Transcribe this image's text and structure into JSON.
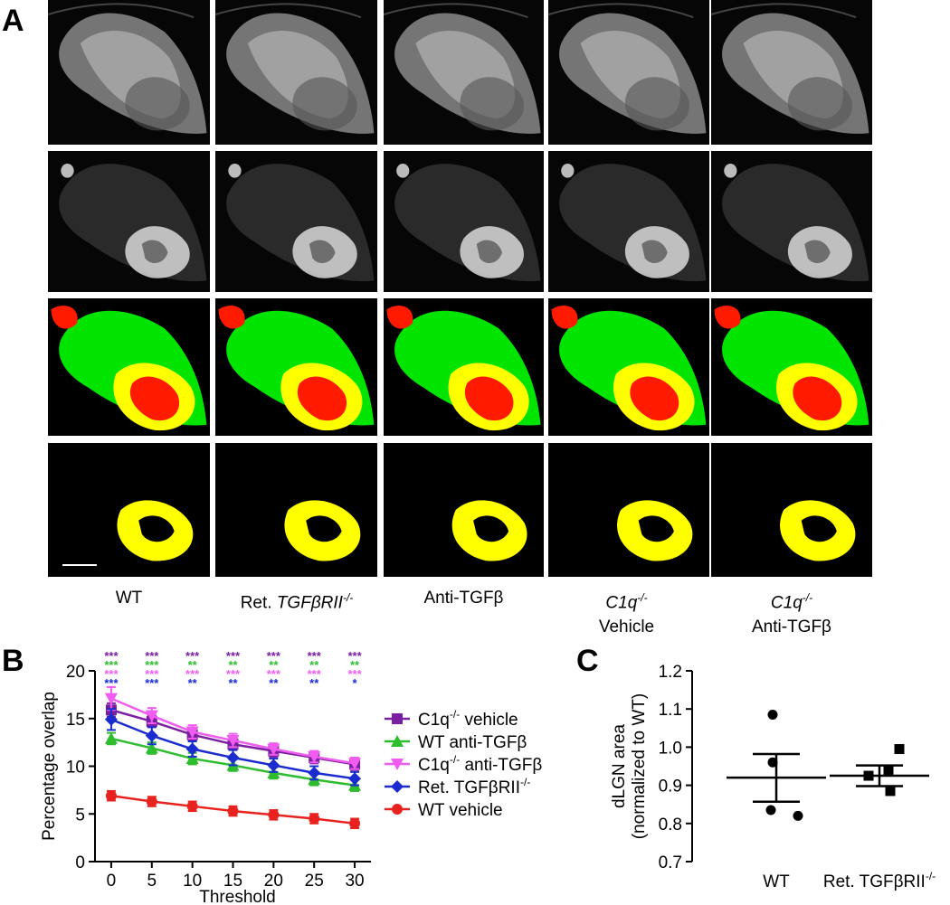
{
  "panel_labels": {
    "a": "A",
    "b": "B",
    "c": "C"
  },
  "panel_a": {
    "row_types": [
      "grayscale-ipsilateral",
      "grayscale-contralateral",
      "overlay-red-green-yellow",
      "overlap-yellow"
    ],
    "colors": {
      "green": "#00e400",
      "red": "#ff1a00",
      "yellow": "#ffff00",
      "background": "#000000"
    },
    "scale_bar": "scale-bar",
    "columns": [
      {
        "line1": "WT",
        "line2": ""
      },
      {
        "line1": "Ret. ",
        "line1_italic": "TGFβRII",
        "line1_sup": "-/-",
        "line2": ""
      },
      {
        "line1": "Anti-TGFβ",
        "line2": ""
      },
      {
        "line1": "",
        "line1_italic": "C1q",
        "line1_sup": "-/-",
        "line2": "Vehicle"
      },
      {
        "line1": "",
        "line1_italic": "C1q",
        "line1_sup": "-/-",
        "line2": "Anti-TGFβ"
      }
    ]
  },
  "chart_data": [
    {
      "panel": "B",
      "type": "line",
      "xlabel": "Threshold",
      "ylabel": "Percentage overlap",
      "x": [
        0,
        5,
        10,
        15,
        20,
        25,
        30
      ],
      "xlim": [
        -2,
        32
      ],
      "ylim": [
        0,
        20
      ],
      "yticks": [
        0,
        5,
        10,
        15,
        20
      ],
      "legend_position": "right",
      "series": [
        {
          "name_base": "C1q",
          "name_sup": "-/-",
          "name_suffix": " vehicle",
          "color": "#7b1fa2",
          "marker": "square",
          "values": [
            15.9,
            14.7,
            13.3,
            12.3,
            11.6,
            10.9,
            10.2
          ],
          "errors": [
            0.7,
            0.6,
            0.6,
            0.6,
            0.6,
            0.6,
            0.6
          ]
        },
        {
          "name_base": "WT anti-TGFβ",
          "name_sup": "",
          "name_suffix": "",
          "color": "#2ebd2e",
          "marker": "triangle-up",
          "values": [
            12.9,
            11.9,
            10.8,
            10.1,
            9.3,
            8.6,
            8.0
          ],
          "errors": [
            0.6,
            0.6,
            0.6,
            0.6,
            0.6,
            0.6,
            0.6
          ]
        },
        {
          "name_base": "C1q",
          "name_sup": "-/-",
          "name_suffix": " anti-TGFβ",
          "color": "#f05cf0",
          "marker": "triangle-down",
          "values": [
            17.1,
            15.3,
            13.6,
            12.7,
            11.8,
            11.0,
            10.3
          ],
          "errors": [
            1.2,
            0.8,
            0.7,
            0.7,
            0.6,
            0.6,
            0.6
          ]
        },
        {
          "name_base": "Ret. TGFβRII",
          "name_sup": "-/-",
          "name_suffix": "",
          "color": "#1a2bd0",
          "marker": "diamond",
          "values": [
            14.9,
            13.2,
            11.8,
            10.9,
            10.1,
            9.3,
            8.7
          ],
          "errors": [
            1.1,
            0.9,
            0.8,
            0.8,
            0.7,
            0.7,
            0.7
          ]
        },
        {
          "name_base": "WT vehicle",
          "name_sup": "",
          "name_suffix": "",
          "color": "#e8231f",
          "marker": "circle",
          "values": [
            6.9,
            6.3,
            5.8,
            5.3,
            4.9,
            4.5,
            4.0
          ],
          "errors": [
            0.5,
            0.5,
            0.5,
            0.5,
            0.5,
            0.5,
            0.5
          ]
        }
      ],
      "significance": [
        {
          "x": 0,
          "marks": [
            [
              "***",
              "#7b1fa2"
            ],
            [
              "***",
              "#2ebd2e"
            ],
            [
              "***",
              "#f05cf0"
            ],
            [
              "***",
              "#1a2bd0"
            ]
          ]
        },
        {
          "x": 5,
          "marks": [
            [
              "***",
              "#7b1fa2"
            ],
            [
              "***",
              "#2ebd2e"
            ],
            [
              "***",
              "#f05cf0"
            ],
            [
              "***",
              "#1a2bd0"
            ]
          ]
        },
        {
          "x": 10,
          "marks": [
            [
              "***",
              "#7b1fa2"
            ],
            [
              "**",
              "#2ebd2e"
            ],
            [
              "***",
              "#f05cf0"
            ],
            [
              "**",
              "#1a2bd0"
            ]
          ]
        },
        {
          "x": 15,
          "marks": [
            [
              "***",
              "#7b1fa2"
            ],
            [
              "**",
              "#2ebd2e"
            ],
            [
              "***",
              "#f05cf0"
            ],
            [
              "**",
              "#1a2bd0"
            ]
          ]
        },
        {
          "x": 20,
          "marks": [
            [
              "***",
              "#7b1fa2"
            ],
            [
              "**",
              "#2ebd2e"
            ],
            [
              "***",
              "#f05cf0"
            ],
            [
              "**",
              "#1a2bd0"
            ]
          ]
        },
        {
          "x": 25,
          "marks": [
            [
              "***",
              "#7b1fa2"
            ],
            [
              "**",
              "#2ebd2e"
            ],
            [
              "***",
              "#f05cf0"
            ],
            [
              "**",
              "#1a2bd0"
            ]
          ]
        },
        {
          "x": 30,
          "marks": [
            [
              "***",
              "#7b1fa2"
            ],
            [
              "**",
              "#2ebd2e"
            ],
            [
              "***",
              "#f05cf0"
            ],
            [
              "*",
              "#1a2bd0"
            ]
          ]
        }
      ]
    },
    {
      "panel": "C",
      "type": "scatter",
      "ylabel_line1": "dLGN  area",
      "ylabel_line2": "(normalized to WT)",
      "ylim": [
        0.7,
        1.2
      ],
      "yticks": [
        "0.7",
        "0.8",
        "0.9",
        "1.0",
        "1.1",
        "1.2"
      ],
      "groups": [
        {
          "label": "WT",
          "label_sup": "",
          "marker": "circle",
          "points": [
            1.085,
            0.96,
            0.835,
            0.82
          ],
          "mean": 0.92,
          "sem_upper": 0.982,
          "sem_lower": 0.857
        },
        {
          "label": "Ret. TGFβRII",
          "label_sup": "-/-",
          "marker": "square",
          "points": [
            0.995,
            0.94,
            0.925,
            0.885
          ],
          "mean": 0.925,
          "sem_upper": 0.952,
          "sem_lower": 0.898
        }
      ]
    }
  ]
}
